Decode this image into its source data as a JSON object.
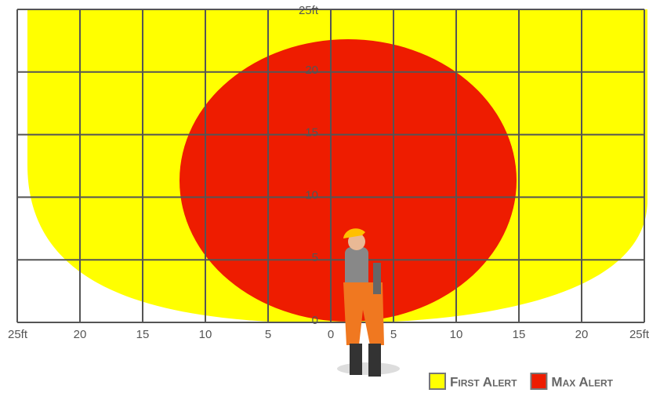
{
  "x_axis_labels": [
    "25ft",
    "20",
    "15",
    "10",
    "5",
    "0",
    "5",
    "10",
    "15",
    "20",
    "25ft"
  ],
  "y_axis_labels": [
    "0",
    "5",
    "10",
    "15",
    "20",
    "25ft"
  ],
  "legend": [
    {
      "label": "First Alert",
      "color": "#ffff00"
    },
    {
      "label": "Max Alert",
      "color": "#ee1c00"
    }
  ]
}
